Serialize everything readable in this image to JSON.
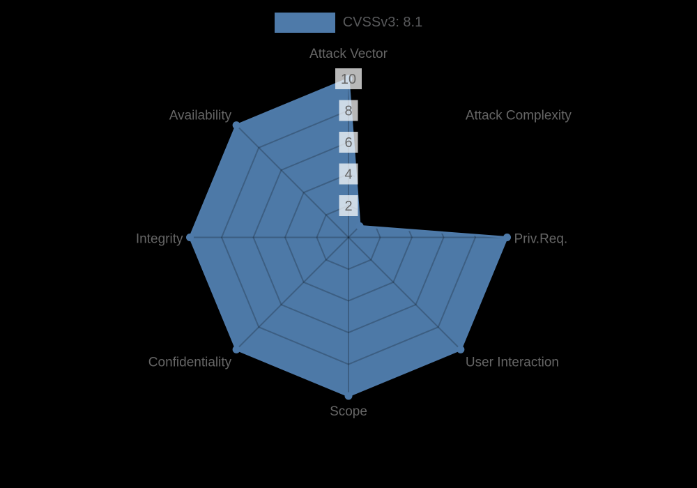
{
  "legend": {
    "label": "CVSSv3: 8.1"
  },
  "chart_data": {
    "type": "radar",
    "title": "",
    "categories": [
      "Attack Vector",
      "Attack Complexity",
      "Priv.Req.",
      "User Interaction",
      "Scope",
      "Confidentiality",
      "Integrity",
      "Availability"
    ],
    "series": [
      {
        "name": "CVSSv3: 8.1",
        "values": [
          10,
          1,
          10,
          10,
          10,
          10,
          10,
          10
        ]
      }
    ],
    "ticks": [
      2,
      4,
      6,
      8,
      10
    ],
    "scale": {
      "min": 0,
      "max": 10
    },
    "grid": true,
    "grid_shape": "polygon",
    "start_axis": "top",
    "direction": "clockwise",
    "legend_position": "top",
    "colors": {
      "series_fill": "#4d79a7",
      "series_stroke": "#4e7aa9",
      "point": "#4e7aa9",
      "grid_line": "rgba(0,0,0,0.22)",
      "axis_label": "#666666",
      "tick_text": "#666666",
      "tick_backdrop": "rgba(255,255,255,0.72)",
      "legend_text": "#58595b",
      "background": "#000000"
    }
  }
}
